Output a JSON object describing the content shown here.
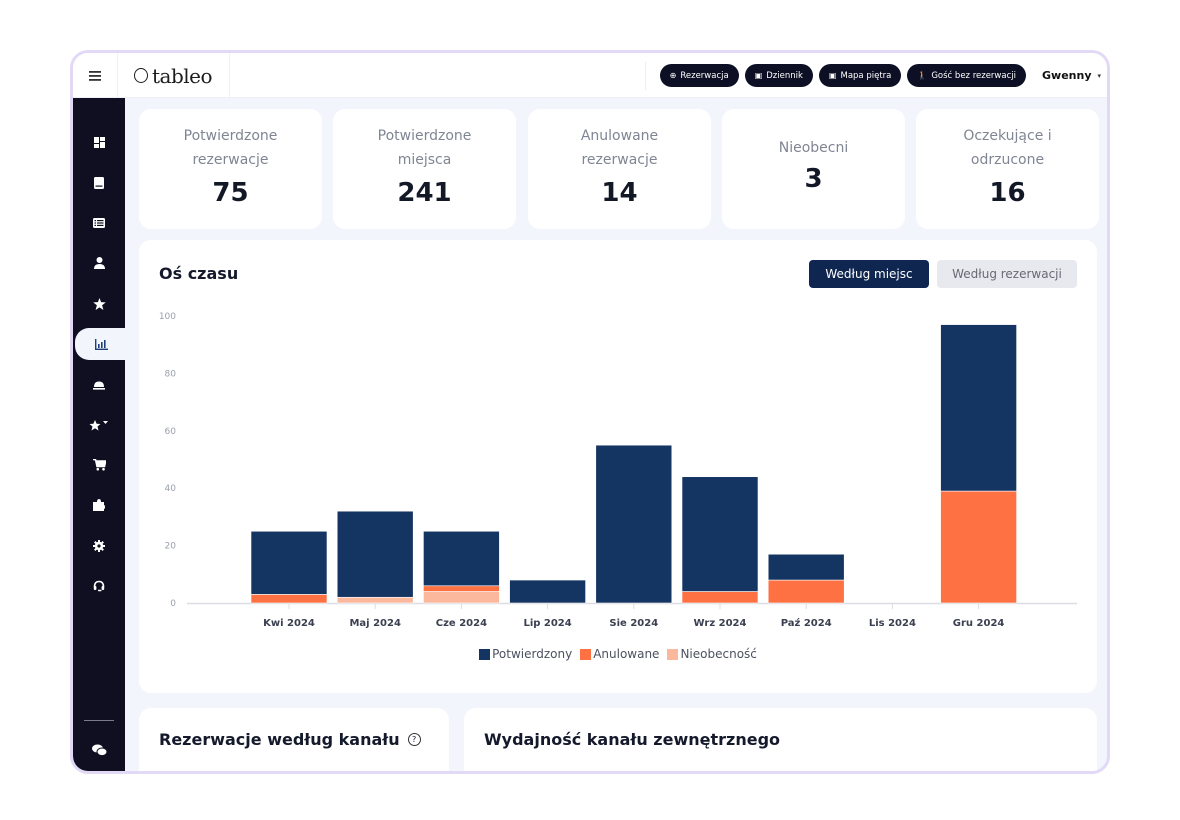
{
  "app": {
    "logo_text": "tableo",
    "menu_icon": "hamburger-icon"
  },
  "topbar": {
    "actions": [
      {
        "label": "Rezerwacja",
        "icon": "plus-circle-icon",
        "glyph": "⊕"
      },
      {
        "label": "Dziennik",
        "icon": "calendar-icon",
        "glyph": "▣"
      },
      {
        "label": "Mapa piętra",
        "icon": "floor-map-icon",
        "glyph": "▣"
      },
      {
        "label": "Gość bez rezerwacji",
        "icon": "walk-in-icon",
        "glyph": "🚶"
      }
    ],
    "user": "Gwenny",
    "user_caret": "▾"
  },
  "sidebar": {
    "items": [
      {
        "name": "dashboard",
        "icon": "dashboard-icon",
        "glyph": "▚"
      },
      {
        "name": "reservations-book",
        "icon": "book-icon",
        "glyph": "▤"
      },
      {
        "name": "list",
        "icon": "list-icon",
        "glyph": "☰"
      },
      {
        "name": "guests",
        "icon": "user-icon",
        "glyph": "👤"
      },
      {
        "name": "reviews",
        "icon": "star-icon",
        "glyph": "★"
      },
      {
        "name": "reports",
        "icon": "bar-chart-icon",
        "glyph": "📊",
        "active": true
      },
      {
        "name": "service",
        "icon": "service-bell-icon",
        "glyph": "⏏"
      },
      {
        "name": "favorites",
        "icon": "star-dropdown-icon",
        "glyph": "★▾"
      },
      {
        "name": "shop",
        "icon": "cart-icon",
        "glyph": "🛒"
      },
      {
        "name": "integrations",
        "icon": "puzzle-icon",
        "glyph": "✚"
      },
      {
        "name": "settings",
        "icon": "gear-icon",
        "glyph": "⚙"
      },
      {
        "name": "support",
        "icon": "headset-icon",
        "glyph": "☊"
      },
      {
        "name": "chat",
        "icon": "chat-bubbles-icon",
        "glyph": "💬"
      }
    ]
  },
  "stats": [
    {
      "label": "Potwierdzone rezerwacje",
      "value": "75"
    },
    {
      "label": "Potwierdzone miejsca",
      "value": "241"
    },
    {
      "label": "Anulowane rezerwacje",
      "value": "14"
    },
    {
      "label": "Nieobecni",
      "value": "3"
    },
    {
      "label": "Oczekujące i odrzucone",
      "value": "16"
    }
  ],
  "timeline": {
    "title": "Oś czasu",
    "toggle_active": "Według miejsc",
    "toggle_inactive": "Według rezerwacji"
  },
  "chart_data": {
    "type": "bar",
    "stacked": true,
    "title": "Oś czasu",
    "xlabel": "",
    "ylabel": "",
    "ylim": [
      0,
      100
    ],
    "yticks": [
      0,
      20,
      40,
      60,
      80,
      100
    ],
    "categories": [
      "Kwi 2024",
      "Maj 2024",
      "Cze 2024",
      "Lip 2024",
      "Sie 2024",
      "Wrz 2024",
      "Paź 2024",
      "Lis 2024",
      "Gru 2024"
    ],
    "series": [
      {
        "name": "Nieobecność",
        "color": "#fbb89d",
        "values": [
          0,
          2,
          4,
          0,
          0,
          0,
          0,
          0,
          0
        ]
      },
      {
        "name": "Anulowane",
        "color": "#fd7143",
        "values": [
          3,
          0,
          2,
          0,
          0,
          4,
          8,
          0,
          39
        ]
      },
      {
        "name": "Potwierdzony",
        "color": "#143462",
        "values": [
          22,
          30,
          19,
          8,
          55,
          40,
          9,
          0,
          58
        ]
      }
    ],
    "legend": [
      "Potwierdzony",
      "Anulowane",
      "Nieobecność"
    ],
    "legend_position": "bottom",
    "grid": false
  },
  "bottom": {
    "channels_title": "Rezerwacje według kanału",
    "help_glyph": "?",
    "external_title": "Wydajność kanału zewnętrznego"
  }
}
